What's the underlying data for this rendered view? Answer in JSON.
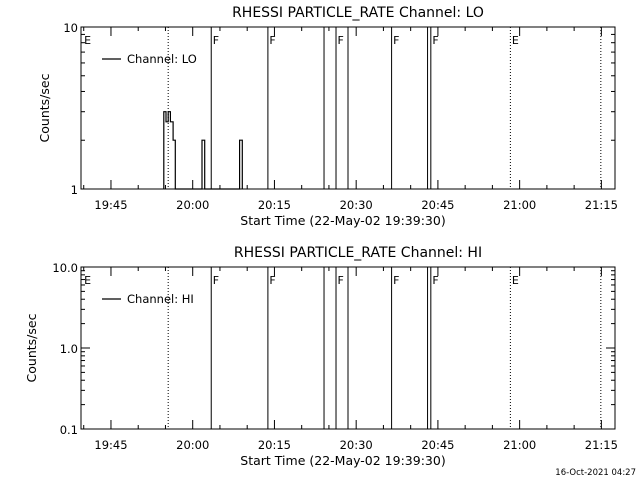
{
  "chart_data": [
    {
      "type": "line",
      "title": "RHESSI PARTICLE_RATE Channel: LO",
      "xlabel": "Start Time (22-May-02 19:39:30)",
      "ylabel": "Counts/sec",
      "yscale": "log",
      "ylim": [
        1,
        10
      ],
      "y_tick_labels": [
        "1",
        "10"
      ],
      "xlim_minutes": [
        0,
        98
      ],
      "x_tick_labels": [
        "19:45",
        "20:00",
        "20:15",
        "20:30",
        "20:45",
        "21:00",
        "21:15"
      ],
      "x_tick_minutes": [
        5.5,
        20.5,
        35.5,
        50.5,
        65.5,
        80.5,
        95.5
      ],
      "legend": {
        "label": "Channel: LO",
        "placement": "top-left"
      },
      "series": [
        {
          "name": "Channel: LO",
          "x": [
            15.2,
            15.2,
            15.6,
            15.6,
            16.0,
            16.0,
            16.4,
            16.4,
            16.9,
            16.9,
            17.3,
            17.3,
            22.2,
            22.2,
            22.7,
            22.7,
            29.1,
            29.1,
            29.6,
            29.6
          ],
          "y": [
            1,
            3,
            3,
            2.6,
            2.6,
            3,
            3,
            2.6,
            2.6,
            2,
            2,
            1,
            1,
            2,
            2,
            1,
            1,
            2,
            2,
            1
          ]
        }
      ],
      "markers": [
        {
          "label": "E",
          "x": 0.3,
          "style": "none"
        },
        {
          "label": "",
          "x": 16.0,
          "style": "dotted"
        },
        {
          "label": "F",
          "x": 23.9,
          "style": "solid"
        },
        {
          "label": "F",
          "x": 34.3,
          "style": "solid"
        },
        {
          "label": "",
          "x": 44.6,
          "style": "solid"
        },
        {
          "label": "F",
          "x": 46.8,
          "style": "solid"
        },
        {
          "label": "",
          "x": 49.0,
          "style": "solid"
        },
        {
          "label": "F",
          "x": 57.0,
          "style": "solid"
        },
        {
          "label": "",
          "x": 63.6,
          "style": "solid"
        },
        {
          "label": "F",
          "x": 64.2,
          "style": "solid"
        },
        {
          "label": "E",
          "x": 78.8,
          "style": "dotted"
        },
        {
          "label": "",
          "x": 95.4,
          "style": "dotted"
        }
      ]
    },
    {
      "type": "line",
      "title": "RHESSI PARTICLE_RATE Channel: HI",
      "xlabel": "Start Time (22-May-02 19:39:30)",
      "ylabel": "Counts/sec",
      "yscale": "log",
      "ylim": [
        0.1,
        10
      ],
      "y_tick_labels": [
        "0.1",
        "1.0",
        "10.0"
      ],
      "xlim_minutes": [
        0,
        98
      ],
      "x_tick_labels": [
        "19:45",
        "20:00",
        "20:15",
        "20:30",
        "20:45",
        "21:00",
        "21:15"
      ],
      "x_tick_minutes": [
        5.5,
        20.5,
        35.5,
        50.5,
        65.5,
        80.5,
        95.5
      ],
      "legend": {
        "label": "Channel: HI",
        "placement": "top-left"
      },
      "series": [
        {
          "name": "Channel: HI",
          "x": [],
          "y": []
        }
      ],
      "markers": [
        {
          "label": "E",
          "x": 0.3,
          "style": "none"
        },
        {
          "label": "",
          "x": 16.0,
          "style": "dotted"
        },
        {
          "label": "F",
          "x": 23.9,
          "style": "solid"
        },
        {
          "label": "F",
          "x": 34.3,
          "style": "solid"
        },
        {
          "label": "",
          "x": 44.6,
          "style": "solid"
        },
        {
          "label": "F",
          "x": 46.8,
          "style": "solid"
        },
        {
          "label": "",
          "x": 49.0,
          "style": "solid"
        },
        {
          "label": "F",
          "x": 57.0,
          "style": "solid"
        },
        {
          "label": "",
          "x": 63.6,
          "style": "solid"
        },
        {
          "label": "F",
          "x": 64.2,
          "style": "solid"
        },
        {
          "label": "E",
          "x": 78.8,
          "style": "dotted"
        },
        {
          "label": "",
          "x": 95.4,
          "style": "dotted"
        }
      ]
    }
  ],
  "footer": {
    "timestamp": "16-Oct-2021 04:27"
  }
}
